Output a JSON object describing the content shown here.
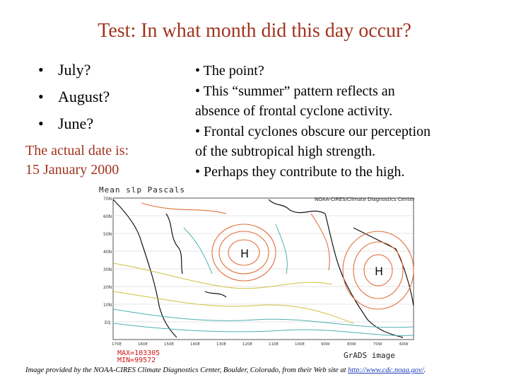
{
  "slide": {
    "title": "Test: In what month did this day occur?",
    "bullets": [
      "July?",
      "August?",
      "June?"
    ],
    "actual_date_line1": "The actual date is:",
    "actual_date_line2": "15 January 2000",
    "notes": [
      "• The point?",
      "• This “summer” pattern reflects an",
      "absence of frontal cyclone activity.",
      "• Frontal cyclones obscure our perception",
      "of  the subtropical high strength.",
      "• Perhaps they contribute to the high."
    ]
  },
  "map": {
    "title": "Mean slp Pascals",
    "source": "NOAA-CIRES/Climate Diagnostics Center",
    "max_label": "MAX=103305",
    "min_label": "MIN=99572",
    "grads": "GrADS image",
    "high_marker": "H",
    "lat_labels": [
      "70N",
      "60N",
      "50N",
      "40N",
      "30N",
      "20N",
      "10N",
      "EQ"
    ],
    "lon_labels": [
      "170E",
      "160E",
      "150E",
      "140E",
      "130E",
      "120E",
      "110E",
      "100E",
      "90W",
      "80W",
      "70W",
      "60W"
    ],
    "colors": {
      "contour_warm": "#e0703a",
      "contour_cool": "#4fb0b0",
      "contour_mid": "#d0c040",
      "land": "#111111"
    }
  },
  "credit": {
    "text": "Image provided by the NOAA-CIRES Climate Diagnostics Center, Boulder, Colorado, from their Web site at ",
    "link": "http://www.cdc.noaa.gov/",
    "end": "."
  }
}
